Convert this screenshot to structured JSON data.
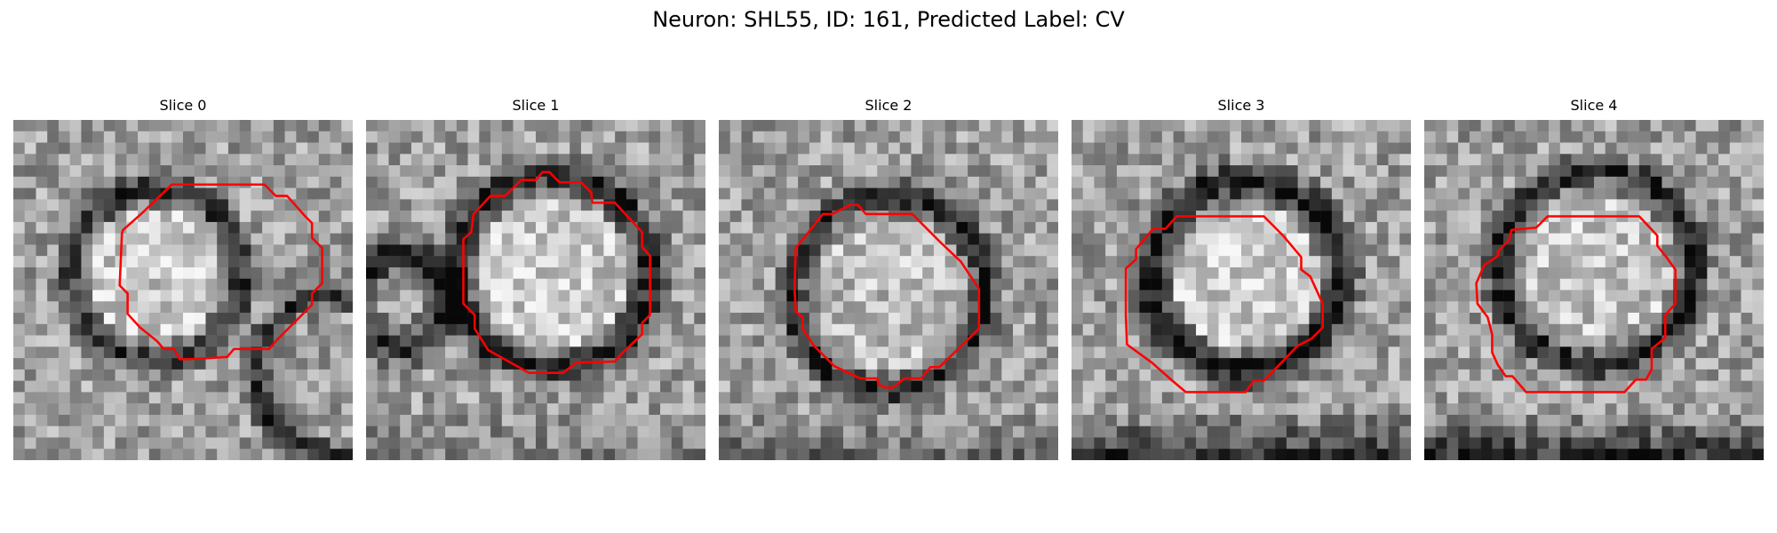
{
  "figure": {
    "title": "Neuron: SHL55, ID: 161, Predicted Label: CV"
  },
  "colors": {
    "contour": "#ff0000",
    "background": "#ffffff"
  },
  "panels": [
    {
      "title": "Slice 0"
    },
    {
      "title": "Slice 1"
    },
    {
      "title": "Slice 2"
    },
    {
      "title": "Slice 3"
    },
    {
      "title": "Slice 4"
    }
  ]
}
